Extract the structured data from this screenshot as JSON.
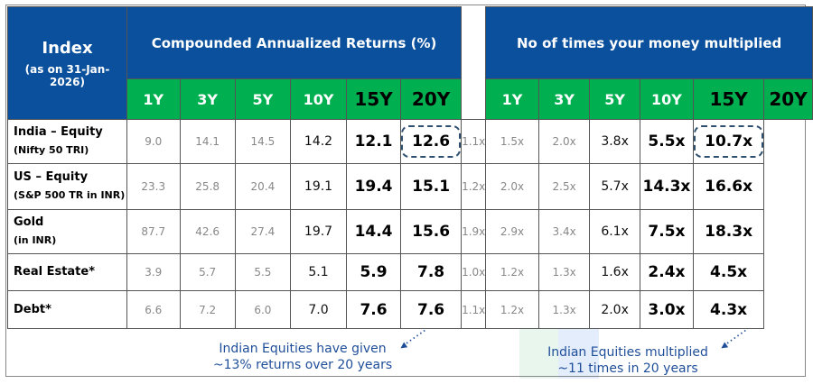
{
  "header": {
    "index_label": "Index",
    "as_of": "(as on 31-Jan-2026)",
    "returns_title": "Compounded Annualized Returns (%)",
    "multiples_title": "No of times your money multiplied"
  },
  "periods": [
    "1Y",
    "3Y",
    "5Y",
    "10Y",
    "15Y",
    "20Y"
  ],
  "rows": [
    {
      "name": "India – Equity",
      "sub": "(Nifty 50 TRI)",
      "returns": [
        "9.0",
        "14.1",
        "14.5",
        "14.2",
        "12.1",
        "12.6"
      ],
      "multiples": [
        "1.1x",
        "1.5x",
        "2.0x",
        "3.8x",
        "5.5x",
        "10.7x"
      ]
    },
    {
      "name": "US – Equity",
      "sub": "(S&P 500 TR in INR)",
      "returns": [
        "23.3",
        "25.8",
        "20.4",
        "19.1",
        "19.4",
        "15.1"
      ],
      "multiples": [
        "1.2x",
        "2.0x",
        "2.5x",
        "5.7x",
        "14.3x",
        "16.6x"
      ]
    },
    {
      "name": "Gold",
      "sub": "(in INR)",
      "returns": [
        "87.7",
        "42.6",
        "27.4",
        "19.7",
        "14.4",
        "15.6"
      ],
      "multiples": [
        "1.9x",
        "2.9x",
        "3.4x",
        "6.1x",
        "7.5x",
        "18.3x"
      ]
    },
    {
      "name": "Real Estate*",
      "sub": "",
      "returns": [
        "3.9",
        "5.7",
        "5.5",
        "5.1",
        "5.9",
        "7.8"
      ],
      "multiples": [
        "1.0x",
        "1.2x",
        "1.3x",
        "1.6x",
        "2.4x",
        "4.5x"
      ]
    },
    {
      "name": "Debt*",
      "sub": "",
      "returns": [
        "6.6",
        "7.2",
        "6.0",
        "7.0",
        "7.6",
        "7.6"
      ],
      "multiples": [
        "1.1x",
        "1.2x",
        "1.3x",
        "2.0x",
        "3.0x",
        "4.3x"
      ]
    }
  ],
  "notes": {
    "left": [
      "Indian Equities have given",
      "~13% returns over 20 years"
    ],
    "right": [
      "Indian Equities multiplied",
      "~11 times in 20 years"
    ]
  }
}
